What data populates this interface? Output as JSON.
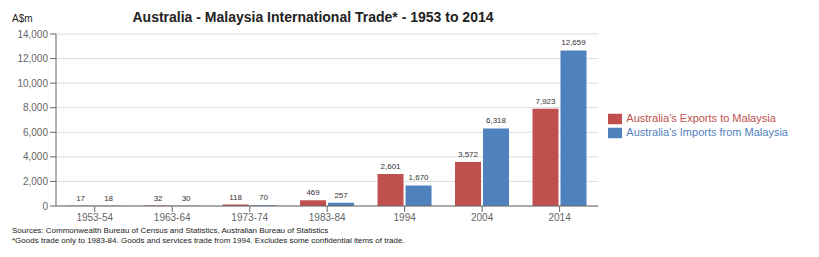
{
  "chart_data": {
    "type": "bar",
    "title": "Australia - Malaysia International Trade* - 1953 to 2014",
    "ylabel": "A$m",
    "categories": [
      "1953-54",
      "1963-64",
      "1973-74",
      "1983-84",
      "1994",
      "2004",
      "2014"
    ],
    "series": [
      {
        "name": "Australia's Exports to Malaysia",
        "color": "#C0504D",
        "values": [
          17,
          32,
          118,
          469,
          2601,
          3572,
          7923
        ],
        "value_labels": [
          "17",
          "32",
          "118",
          "469",
          "2,601",
          "3,572",
          "7,923"
        ]
      },
      {
        "name": "Australia's Imports from Malaysia",
        "color": "#4F81BD",
        "values": [
          18,
          30,
          70,
          257,
          1670,
          6318,
          12659
        ],
        "value_labels": [
          "18",
          "30",
          "70",
          "257",
          "1,670",
          "6,318",
          "12,659"
        ]
      }
    ],
    "ylim": [
      0,
      14000
    ],
    "yticks": [
      0,
      {
        "value": 2000,
        "label": "2,000"
      },
      {
        "value": 4000,
        "label": "4,000"
      },
      {
        "value": 6000,
        "label": "6,000"
      },
      {
        "value": 8000,
        "label": "8,000"
      },
      {
        "value": 10000,
        "label": "10,000"
      },
      {
        "value": 12000,
        "label": "12,000"
      },
      {
        "value": 14000,
        "label": "14,000"
      }
    ],
    "grid": true,
    "legend": "right",
    "data_labels": true,
    "annotations": [
      "Sources:  Commonwealth Bureau of Census and Statistics, Australian Bureau of Statistics",
      "*Goods trade only to 1983-84.  Goods and services trade from 1994.  Excludes some confidential items of trade."
    ]
  }
}
